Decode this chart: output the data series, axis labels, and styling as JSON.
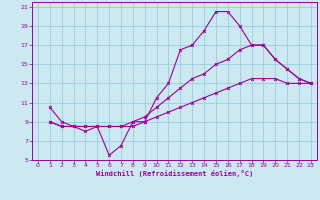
{
  "xlabel": "Windchill (Refroidissement éolien,°C)",
  "bg_color": "#cce8f0",
  "grid_color": "#99cce0",
  "line_color": "#990099",
  "xlim": [
    -0.5,
    23.5
  ],
  "ylim": [
    5,
    21.5
  ],
  "xticks": [
    0,
    1,
    2,
    3,
    4,
    5,
    6,
    7,
    8,
    9,
    10,
    11,
    12,
    13,
    14,
    15,
    16,
    17,
    18,
    19,
    20,
    21,
    22,
    23
  ],
  "yticks": [
    5,
    7,
    9,
    11,
    13,
    15,
    17,
    19,
    21
  ],
  "line1_x": [
    1,
    2,
    3,
    4,
    5,
    6,
    7,
    8,
    9,
    10,
    11,
    12,
    13,
    14,
    15,
    16,
    17,
    18,
    19,
    20,
    21,
    22,
    23
  ],
  "line1_y": [
    10.5,
    9,
    8.5,
    8,
    8.5,
    5.5,
    6.5,
    9,
    9,
    11.5,
    13,
    16.5,
    17,
    18.5,
    20.5,
    20.5,
    19,
    17,
    17,
    15.5,
    14.5,
    13.5,
    13
  ],
  "line2_x": [
    1,
    2,
    3,
    4,
    5,
    6,
    7,
    8,
    9,
    10,
    11,
    12,
    13,
    14,
    15,
    16,
    17,
    18,
    19,
    20,
    21,
    22,
    23
  ],
  "line2_y": [
    9,
    8.5,
    8.5,
    8.5,
    8.5,
    8.5,
    8.5,
    8.5,
    9,
    9.5,
    10,
    10.5,
    11,
    11.5,
    12,
    12.5,
    13,
    13.5,
    13.5,
    13.5,
    13,
    13,
    13
  ],
  "line3_x": [
    1,
    2,
    3,
    4,
    5,
    6,
    7,
    8,
    9,
    10,
    11,
    12,
    13,
    14,
    15,
    16,
    17,
    18,
    19,
    20,
    21,
    22,
    23
  ],
  "line3_y": [
    9,
    8.5,
    8.5,
    8.5,
    8.5,
    8.5,
    8.5,
    9,
    9.5,
    10.5,
    11.5,
    12.5,
    13.5,
    14,
    15,
    15.5,
    16.5,
    17,
    17,
    15.5,
    14.5,
    13.5,
    13
  ]
}
